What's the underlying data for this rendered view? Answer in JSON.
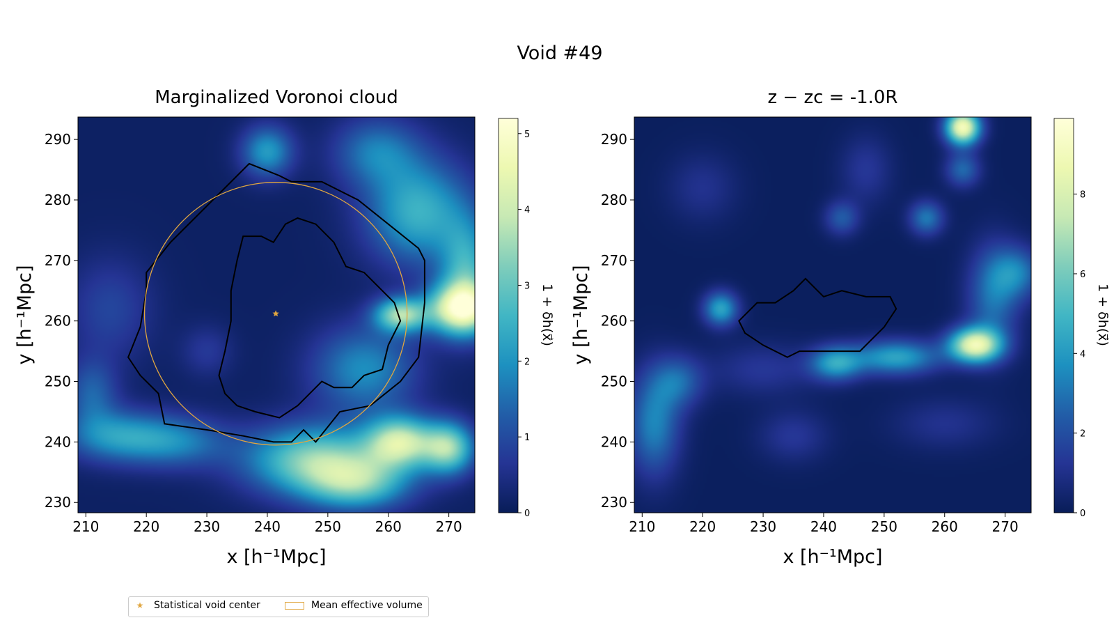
{
  "figure": {
    "suptitle": "Void #49",
    "colors": {
      "contour": "#000000",
      "circle": "#e0a640",
      "star": "#e0a640",
      "cmap": [
        "#081d58",
        "#253494",
        "#225ea8",
        "#1d91c0",
        "#41b6c4",
        "#7fcdbb",
        "#c7e9b4",
        "#edf8b1",
        "#ffffd9"
      ]
    },
    "legend": {
      "items": [
        {
          "label": "Statistical void center",
          "marker": "star"
        },
        {
          "label": "Mean effective volume",
          "marker": "rectangle"
        }
      ]
    }
  },
  "chart_data": [
    {
      "type": "heatmap",
      "title": "Marginalized Voronoi cloud",
      "xlabel": "x [h⁻¹Mpc]",
      "ylabel": "y [h⁻¹Mpc]",
      "xlim": [
        208.7,
        274.3
      ],
      "ylim": [
        228.3,
        293.7
      ],
      "xticks": [
        210,
        220,
        230,
        240,
        250,
        260,
        270
      ],
      "yticks": [
        230,
        240,
        250,
        260,
        270,
        280,
        290
      ],
      "colorbar": {
        "label": "1 + δh(x⃗)",
        "range": [
          0,
          5.2
        ],
        "ticks": [
          0,
          1,
          2,
          3,
          4,
          5
        ]
      },
      "void_center": {
        "x": 241.4,
        "y": 261.2
      },
      "effective_radius": 21.7,
      "density_blobs": [
        {
          "x": 230,
          "y": 255,
          "sx": 3,
          "sy": 3,
          "amp": 0.6
        },
        {
          "x": 248,
          "y": 237,
          "sx": 8,
          "sy": 4,
          "amp": 3.2
        },
        {
          "x": 262,
          "y": 240,
          "sx": 4,
          "sy": 3,
          "amp": 3.6
        },
        {
          "x": 270,
          "y": 239,
          "sx": 3,
          "sy": 3,
          "amp": 3.2
        },
        {
          "x": 255,
          "y": 233,
          "sx": 6,
          "sy": 3,
          "amp": 2.4
        },
        {
          "x": 272,
          "y": 262,
          "sx": 4,
          "sy": 3,
          "amp": 4.3
        },
        {
          "x": 262,
          "y": 261,
          "sx": 3,
          "sy": 2,
          "amp": 3.3
        },
        {
          "x": 265,
          "y": 278,
          "sx": 6,
          "sy": 6,
          "amp": 2.4
        },
        {
          "x": 273,
          "y": 268,
          "sx": 3,
          "sy": 6,
          "amp": 2.2
        },
        {
          "x": 256,
          "y": 252,
          "sx": 6,
          "sy": 5,
          "amp": 1.8
        },
        {
          "x": 240,
          "y": 288,
          "sx": 3,
          "sy": 3,
          "amp": 2.0
        },
        {
          "x": 215,
          "y": 241,
          "sx": 6,
          "sy": 3,
          "amp": 1.8
        },
        {
          "x": 225,
          "y": 240,
          "sx": 6,
          "sy": 3,
          "amp": 1.5
        },
        {
          "x": 258,
          "y": 288,
          "sx": 5,
          "sy": 4,
          "amp": 1.5
        },
        {
          "x": 214,
          "y": 262,
          "sx": 5,
          "sy": 6,
          "amp": 0.8
        },
        {
          "x": 211,
          "y": 248,
          "sx": 3,
          "sy": 4,
          "amp": 1.2
        }
      ],
      "contours": [
        [
          [
            220,
            268
          ],
          [
            224,
            273
          ],
          [
            230,
            279
          ],
          [
            237,
            286
          ],
          [
            242,
            284
          ],
          [
            244,
            283
          ],
          [
            249,
            283
          ],
          [
            255,
            280
          ],
          [
            260,
            276
          ],
          [
            265,
            272
          ],
          [
            266,
            270
          ],
          [
            266,
            263
          ],
          [
            265,
            254
          ],
          [
            262,
            250
          ],
          [
            257,
            246
          ],
          [
            252,
            245
          ],
          [
            248,
            240
          ],
          [
            246,
            242
          ],
          [
            244,
            240
          ],
          [
            241,
            240
          ],
          [
            236,
            241
          ],
          [
            230,
            242
          ],
          [
            223,
            243
          ],
          [
            222,
            248
          ],
          [
            219,
            251
          ],
          [
            217,
            254
          ],
          [
            219,
            259
          ],
          [
            220,
            265
          ],
          [
            220,
            268
          ]
        ],
        [
          [
            236,
            274
          ],
          [
            239,
            274
          ],
          [
            241,
            273
          ],
          [
            243,
            276
          ],
          [
            245,
            277
          ],
          [
            248,
            276
          ],
          [
            251,
            273
          ],
          [
            253,
            269
          ],
          [
            256,
            268
          ],
          [
            258,
            266
          ],
          [
            261,
            263
          ],
          [
            262,
            260
          ],
          [
            260,
            256
          ],
          [
            259,
            252
          ],
          [
            256,
            251
          ],
          [
            254,
            249
          ],
          [
            251,
            249
          ],
          [
            249,
            250
          ],
          [
            247,
            248
          ],
          [
            245,
            246
          ],
          [
            242,
            244
          ],
          [
            238,
            245
          ],
          [
            235,
            246
          ],
          [
            233,
            248
          ],
          [
            232,
            251
          ],
          [
            233,
            255
          ],
          [
            234,
            260
          ],
          [
            234,
            265
          ],
          [
            235,
            270
          ],
          [
            236,
            274
          ]
        ]
      ]
    },
    {
      "type": "heatmap",
      "title": "z − zc = -1.0R",
      "xlabel": "x [h⁻¹Mpc]",
      "ylabel": "y [h⁻¹Mpc]",
      "xlim": [
        208.7,
        274.3
      ],
      "ylim": [
        228.3,
        293.7
      ],
      "xticks": [
        210,
        220,
        230,
        240,
        250,
        260,
        270
      ],
      "yticks": [
        230,
        240,
        250,
        260,
        270,
        280,
        290
      ],
      "colorbar": {
        "label": "1 + δh(x⃗)",
        "range": [
          0,
          9.9
        ],
        "ticks": [
          0,
          2,
          4,
          6,
          8
        ]
      },
      "density_blobs": [
        {
          "x": 265,
          "y": 256,
          "sx": 3,
          "sy": 2,
          "amp": 8.2
        },
        {
          "x": 263,
          "y": 292,
          "sx": 2,
          "sy": 2,
          "amp": 9.0
        },
        {
          "x": 252,
          "y": 254,
          "sx": 5,
          "sy": 2,
          "amp": 4.2
        },
        {
          "x": 242,
          "y": 253,
          "sx": 3,
          "sy": 2,
          "amp": 4.0
        },
        {
          "x": 223,
          "y": 262,
          "sx": 2,
          "sy": 2,
          "amp": 4.2
        },
        {
          "x": 268,
          "y": 264,
          "sx": 3,
          "sy": 6,
          "amp": 2.8
        },
        {
          "x": 272,
          "y": 268,
          "sx": 3,
          "sy": 3,
          "amp": 2.8
        },
        {
          "x": 257,
          "y": 277,
          "sx": 2,
          "sy": 2,
          "amp": 3.0
        },
        {
          "x": 212,
          "y": 243,
          "sx": 3,
          "sy": 6,
          "amp": 3.3
        },
        {
          "x": 216,
          "y": 250,
          "sx": 3,
          "sy": 3,
          "amp": 2.4
        },
        {
          "x": 243,
          "y": 277,
          "sx": 2,
          "sy": 2,
          "amp": 2.2
        },
        {
          "x": 263,
          "y": 285,
          "sx": 2,
          "sy": 2,
          "amp": 2.6
        },
        {
          "x": 230,
          "y": 252,
          "sx": 6,
          "sy": 3,
          "amp": 1.2
        },
        {
          "x": 220,
          "y": 282,
          "sx": 4,
          "sy": 4,
          "amp": 1.0
        },
        {
          "x": 247,
          "y": 285,
          "sx": 3,
          "sy": 4,
          "amp": 1.2
        },
        {
          "x": 235,
          "y": 241,
          "sx": 4,
          "sy": 3,
          "amp": 1.2
        },
        {
          "x": 260,
          "y": 243,
          "sx": 6,
          "sy": 3,
          "amp": 1.0
        }
      ],
      "contours": [
        [
          [
            226,
            260
          ],
          [
            229,
            263
          ],
          [
            232,
            263
          ],
          [
            235,
            265
          ],
          [
            237,
            267
          ],
          [
            239,
            265
          ],
          [
            240,
            264
          ],
          [
            243,
            265
          ],
          [
            247,
            264
          ],
          [
            251,
            264
          ],
          [
            252,
            262
          ],
          [
            250,
            259
          ],
          [
            248,
            257
          ],
          [
            246,
            255
          ],
          [
            241,
            255
          ],
          [
            236,
            255
          ],
          [
            234,
            254
          ],
          [
            230,
            256
          ],
          [
            227,
            258
          ],
          [
            226,
            260
          ]
        ]
      ]
    }
  ]
}
